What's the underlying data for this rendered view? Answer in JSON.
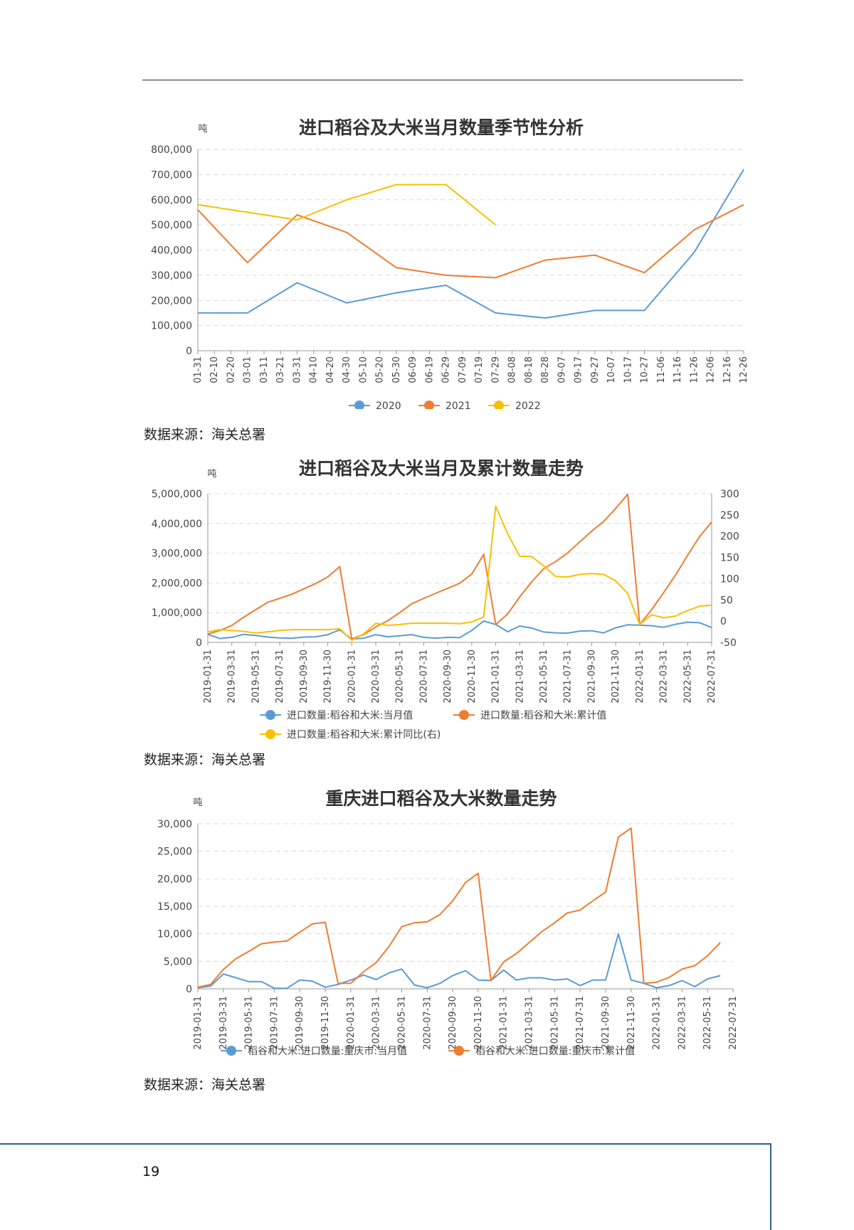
{
  "page_number": "19",
  "source_label": "数据来源：海关总署",
  "colors": {
    "blue": "#5b9bd5",
    "orange": "#ed7d31",
    "yellow": "#f6c100",
    "grid": "#d9d9d9",
    "axis": "#999999",
    "text": "#444444"
  },
  "chart_data": [
    {
      "type": "line",
      "title": "进口稻谷及大米当月数量季节性分析",
      "unit": "吨",
      "ylim": [
        0,
        800000
      ],
      "yticks": [
        "800,000",
        "700,000",
        "600,000",
        "500,000",
        "400,000",
        "300,000",
        "200,000",
        "100,000",
        "0"
      ],
      "categories": [
        "01-31",
        "02-10",
        "02-20",
        "03-01",
        "03-11",
        "03-21",
        "03-31",
        "04-10",
        "04-20",
        "04-30",
        "05-10",
        "05-20",
        "05-30",
        "06-09",
        "06-19",
        "06-29",
        "07-09",
        "07-19",
        "07-29",
        "08-08",
        "08-18",
        "08-28",
        "09-07",
        "09-17",
        "09-27",
        "10-07",
        "10-17",
        "10-27",
        "11-06",
        "11-16",
        "11-26",
        "12-06",
        "12-16",
        "12-26"
      ],
      "legend_position": "bottom",
      "series": [
        {
          "name": "2020",
          "color": "#5b9bd5",
          "points": [
            [
              "01-31",
              150000
            ],
            [
              "03-01",
              150000
            ],
            [
              "03-31",
              270000
            ],
            [
              "04-30",
              190000
            ],
            [
              "05-30",
              230000
            ],
            [
              "06-29",
              260000
            ],
            [
              "07-29",
              150000
            ],
            [
              "08-28",
              130000
            ],
            [
              "09-27",
              160000
            ],
            [
              "10-27",
              160000
            ],
            [
              "11-26",
              390000
            ],
            [
              "12-26",
              720000
            ]
          ]
        },
        {
          "name": "2021",
          "color": "#ed7d31",
          "points": [
            [
              "01-31",
              560000
            ],
            [
              "03-01",
              350000
            ],
            [
              "03-31",
              540000
            ],
            [
              "04-30",
              470000
            ],
            [
              "05-30",
              330000
            ],
            [
              "06-29",
              300000
            ],
            [
              "07-29",
              290000
            ],
            [
              "08-28",
              360000
            ],
            [
              "09-27",
              380000
            ],
            [
              "10-27",
              310000
            ],
            [
              "11-26",
              480000
            ],
            [
              "12-26",
              580000
            ]
          ]
        },
        {
          "name": "2022",
          "color": "#f6c100",
          "points": [
            [
              "01-31",
              580000
            ],
            [
              "03-31",
              520000
            ],
            [
              "04-30",
              600000
            ],
            [
              "05-30",
              660000
            ],
            [
              "06-29",
              660000
            ],
            [
              "07-29",
              500000
            ]
          ]
        }
      ]
    },
    {
      "type": "line",
      "title": "进口稻谷及大米当月及累计数量走势",
      "unit": "吨",
      "ylim": [
        0,
        5000000
      ],
      "yticks": [
        "5,000,000",
        "4,000,000",
        "3,000,000",
        "2,000,000",
        "1,000,000",
        "0"
      ],
      "y2lim": [
        -50,
        300
      ],
      "y2ticks": [
        "300",
        "250",
        "200",
        "150",
        "100",
        "50",
        "0",
        "-50"
      ],
      "xticks": [
        "2019-01-31",
        "2019-03-31",
        "2019-05-31",
        "2019-07-31",
        "2019-09-30",
        "2019-11-30",
        "2020-01-31",
        "2020-03-31",
        "2020-05-31",
        "2020-07-31",
        "2020-09-30",
        "2020-11-30",
        "2021-01-31",
        "2021-03-31",
        "2021-05-31",
        "2021-07-31",
        "2021-09-30",
        "2021-11-30",
        "2022-01-31",
        "2022-03-31",
        "2022-05-31",
        "2022-07-31"
      ],
      "legend_position": "bottom",
      "series": [
        {
          "name": "进口数量:稻谷和大米:当月值",
          "color": "#5b9bd5",
          "axis": "left",
          "values": [
            270000,
            130000,
            170000,
            270000,
            230000,
            180000,
            150000,
            140000,
            180000,
            190000,
            260000,
            420000,
            110000,
            140000,
            260000,
            190000,
            220000,
            260000,
            170000,
            140000,
            170000,
            160000,
            400000,
            720000,
            600000,
            360000,
            550000,
            480000,
            350000,
            320000,
            310000,
            380000,
            390000,
            320000,
            490000,
            590000,
            580000,
            560000,
            510000,
            610000,
            680000,
            660000,
            500000
          ]
        },
        {
          "name": "进口数量:稻谷和大米:累计值",
          "color": "#ed7d31",
          "axis": "left",
          "values": [
            280000,
            400000,
            570000,
            850000,
            1100000,
            1350000,
            1480000,
            1620000,
            1800000,
            1980000,
            2200000,
            2550000,
            120000,
            260000,
            520000,
            730000,
            1000000,
            1300000,
            1480000,
            1650000,
            1820000,
            1990000,
            2300000,
            2960000,
            600000,
            960000,
            1530000,
            2030000,
            2480000,
            2720000,
            3010000,
            3380000,
            3740000,
            4070000,
            4500000,
            4980000,
            600000,
            1100000,
            1680000,
            2270000,
            2930000,
            3560000,
            4050000
          ]
        },
        {
          "name": "进口数量:稻谷和大米:累计同比(右)",
          "color": "#f6c100",
          "axis": "right",
          "values": [
            -25,
            -20,
            -22,
            -24,
            -28,
            -25,
            -22,
            -20,
            -20,
            -20,
            -20,
            -18,
            -45,
            -30,
            -5,
            -10,
            -8,
            -5,
            -5,
            -5,
            -5,
            -6,
            -2,
            10,
            270,
            205,
            153,
            152,
            130,
            105,
            104,
            110,
            112,
            110,
            95,
            65,
            -8,
            15,
            8,
            12,
            25,
            35,
            38
          ]
        }
      ]
    },
    {
      "type": "line",
      "title": "重庆进口稻谷及大米数量走势",
      "unit": "吨",
      "ylim": [
        0,
        30000
      ],
      "yticks": [
        "30,000",
        "25,000",
        "20,000",
        "15,000",
        "10,000",
        "5,000",
        "0"
      ],
      "xticks": [
        "2019-01-31",
        "2019-03-31",
        "2019-05-31",
        "2019-07-31",
        "2019-09-30",
        "2019-11-30",
        "2020-01-31",
        "2020-03-31",
        "2020-05-31",
        "2020-07-31",
        "2020-09-30",
        "2020-11-30",
        "2021-01-31",
        "2021-03-31",
        "2021-05-31",
        "2021-07-31",
        "2021-09-30",
        "2021-11-30",
        "2022-01-31",
        "2022-03-31",
        "2022-05-31",
        "2022-07-31"
      ],
      "legend_position": "bottom",
      "series": [
        {
          "name": "稻谷和大米:进口数量:重庆市:当月值",
          "color": "#5b9bd5",
          "values": [
            200,
            500,
            2700,
            2000,
            1300,
            1300,
            100,
            100,
            1600,
            1400,
            300,
            800,
            1600,
            2500,
            1700,
            2900,
            3600,
            700,
            200,
            1000,
            2400,
            3300,
            1600,
            1500,
            3400,
            1600,
            2000,
            2000,
            1600,
            1800,
            600,
            1600,
            1600,
            10000,
            1600,
            1000,
            200,
            600,
            1500,
            400,
            1800,
            2400
          ]
        },
        {
          "name": "稻谷和大米:进口数量:重庆市:累计值",
          "color": "#ed7d31",
          "values": [
            300,
            800,
            3500,
            5500,
            6800,
            8200,
            8500,
            8700,
            10300,
            11800,
            12100,
            1000,
            1000,
            3100,
            4800,
            7700,
            11300,
            12000,
            12200,
            13500,
            16000,
            19300,
            21000,
            1500,
            4900,
            6400,
            8400,
            10400,
            12000,
            13800,
            14300,
            16000,
            17600,
            27600,
            29200,
            1000,
            1200,
            2100,
            3600,
            4200,
            6000,
            8400
          ]
        }
      ]
    }
  ]
}
